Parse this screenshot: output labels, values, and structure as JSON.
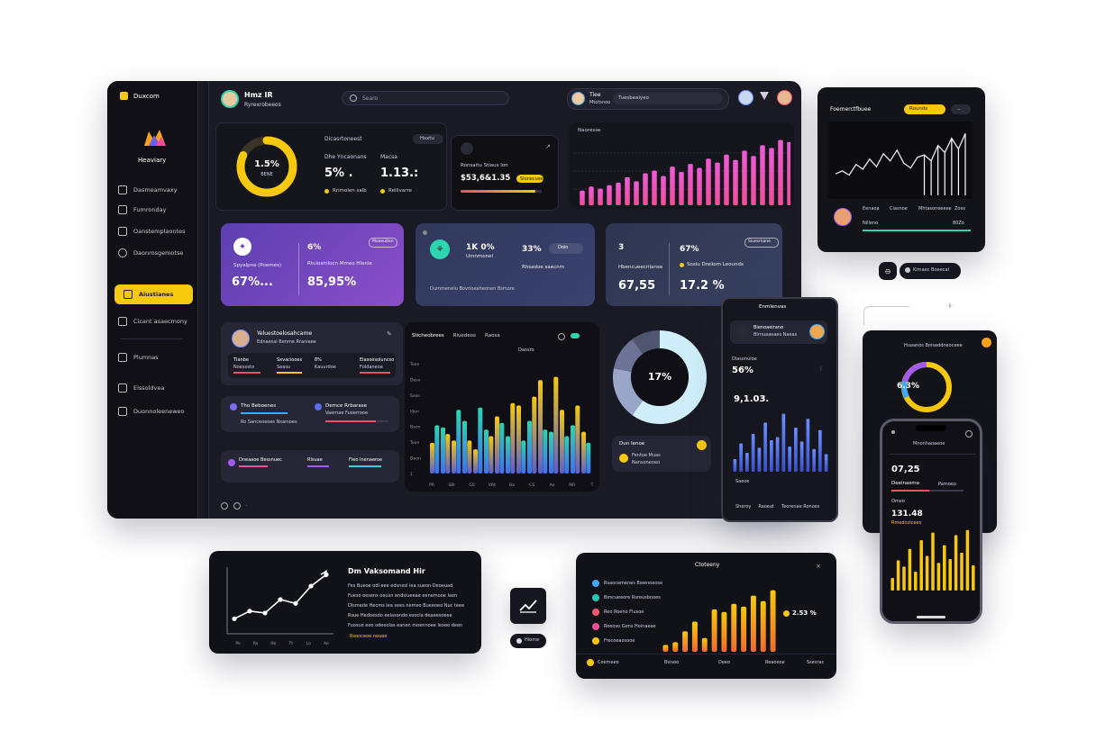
{
  "sidebar": {
    "brand": "Duxcom",
    "profile_name": "Heaviary",
    "items": [
      {
        "label": "Dasmeamvaxy"
      },
      {
        "label": "Fumronday"
      },
      {
        "label": "Oanstemplaontes"
      },
      {
        "label": "Daonrosgemotse"
      },
      {
        "label": "Aiustianes",
        "active": true
      },
      {
        "label": "Cicant asaecmony"
      },
      {
        "label": "Plumnas"
      },
      {
        "label": "Eissoldvea"
      },
      {
        "label": "Duonnoleeneweo"
      }
    ]
  },
  "header": {
    "title": "Hmz IR",
    "subtitle": "Ryrexrobeeos",
    "search_placeholder": "Searo",
    "user_name": "Tiee",
    "user_sub": "Mtotsnoo",
    "field_text": "Tuesbealyeo"
  },
  "kpi_panel": {
    "donut_value": "1.5%",
    "donut_sub": "BENE",
    "title": "Dicasrtoneest",
    "button": "Hsxtu",
    "stat1_label": "Dhe Yncaonans",
    "stat1_value": "5% .",
    "stat1_sub": "Rrimolen salb",
    "stat2_label": "Macsa",
    "stat2_value": "1.13.:",
    "stat2_sub": "Rellivarre"
  },
  "progress_card": {
    "label": "Ronsaitu Stiaus Ion",
    "value": "$53,6&1.35",
    "badge": "Sionecuee",
    "progress": 0.92
  },
  "bar_top": {
    "title": "Naoresse",
    "values": [
      22,
      28,
      25,
      30,
      34,
      42,
      36,
      48,
      52,
      44,
      58,
      50,
      62,
      56,
      70,
      64,
      76,
      68,
      82,
      74,
      90,
      86,
      98,
      95
    ]
  },
  "stat_cards": [
    {
      "icon_name": "hub-icon",
      "val_a": "6%",
      "lab_a": "Spyalpne (Poemes)",
      "val_b": "67%...",
      "lab_b": "Rtulosmlocn Mmeo Hlenle",
      "val_c": "85,95%",
      "badge": "Moaeuiten"
    },
    {
      "icon_name": "link-icon",
      "val_a": "1K 0%",
      "lab_a": "Umnmonel",
      "val_b": "33%",
      "lab_b": "Rhsadoe saecnm",
      "badge": "Doin",
      "foot": "Durnmenelu Bovrioeaheonen Bsmore"
    },
    {
      "icon_name": "",
      "val_a": "3",
      "lab_a": "Hbencueecrilanse",
      "val_b": "67%",
      "lab_b": "Sosiu Dreiiom Leounds",
      "val_c": "67,55",
      "val_d": "17.2 %",
      "badge": "Siuesmane"
    }
  ],
  "profile_card": {
    "name": "Yeluestoelosahcame",
    "sub": "Ednaesal Benme Rraniaee",
    "cols": [
      {
        "label": "Tlanbe",
        "value": "Noesosto"
      },
      {
        "label": "Sxvaciooes",
        "value": "Seasu"
      },
      {
        "label": "8%",
        "value": "Kauurdoe"
      },
      {
        "label": "Elasoesoluncso",
        "value": "Foldaneoe"
      }
    ]
  },
  "list_card": {
    "items": [
      {
        "title": "Tho Beboenes",
        "sub": "Ro Sanceoeoes Nsamoes",
        "color": "#7c6cf0"
      },
      {
        "title": "Demce Rrbarase",
        "sub": "Vaernae Fuoerrooe",
        "color": "#ef4e6a"
      }
    ]
  },
  "tasks_card": {
    "items": [
      {
        "title": "Dneaaoe Bessnuec",
        "bar": 0.8,
        "color": "#ef4e9a"
      },
      {
        "title": "Rlsuae",
        "bar": 0.6,
        "color": "#a25af0"
      },
      {
        "title": "Fleo Inenaeroe",
        "bar": 0.9,
        "color": "#2dd4d9"
      }
    ]
  },
  "main_chart": {
    "tabs": [
      "Sticheobrees",
      "Riuedeos",
      "Raosa"
    ],
    "legend": "Daosro",
    "y_ticks": [
      "Teon",
      "Daso",
      "Seon",
      "Idon",
      "Baon",
      "Teon",
      "Daon",
      "1"
    ],
    "x_ticks": [
      "PR",
      "SBr",
      "GS",
      "VRt",
      "Ba",
      "CS",
      "Ae",
      "MR",
      "T"
    ],
    "series": [
      {
        "name": "",
        "values": [
          28,
          42,
          30,
          48,
          22,
          40,
          52,
          34,
          62,
          48,
          85,
          38,
          58,
          44,
          38
        ]
      },
      {
        "name": "",
        "values": [
          44,
          36,
          58,
          30,
          60,
          34,
          46,
          64,
          30,
          70,
          40,
          88,
          34,
          62,
          28
        ]
      }
    ]
  },
  "ring_card": {
    "value": "17%",
    "footer_title": "Dun Ienoe",
    "footer_a": "Fentoe Muas",
    "footer_b": "Nansoneoeo",
    "slices": [
      {
        "value": 60,
        "color": "#cfeefa"
      },
      {
        "value": 18,
        "color": "#9aa6c8"
      },
      {
        "value": 12,
        "color": "#6d7397"
      },
      {
        "value": 10,
        "color": "#50566f"
      }
    ]
  },
  "tablet": {
    "title": "Enmlenvas",
    "profile_title": "Bienoaeirano",
    "profile_sub": "Blrnuaaeaes Naeas",
    "stat_label": "Dlasonuloe",
    "stat_value": "56%",
    "big_value": "9,1.03.",
    "bars": [
      20,
      45,
      30,
      60,
      38,
      78,
      50,
      55,
      92,
      40,
      70,
      48,
      84,
      36,
      66,
      28
    ],
    "footer": "Saeoe",
    "bottom": [
      "Sheroy",
      "Raoeat",
      "Teorenae Ronoes"
    ]
  },
  "right_top": {
    "title": "Foemerctfbuee",
    "badge": "Rounds",
    "mini": "..",
    "rows": [
      {
        "a": "Eenaoa",
        "b": "Ciasnoe",
        "c": "Mhtasoneeeee",
        "d": "Zoes"
      },
      {
        "a": "Nilleno",
        "b": "",
        "c": "",
        "d": "80Zo"
      }
    ],
    "line_values": [
      30,
      35,
      28,
      46,
      38,
      55,
      42,
      64,
      52,
      70,
      48,
      40,
      58,
      62,
      52,
      78,
      66,
      90,
      72,
      98
    ]
  },
  "pill_btn": {
    "label": "Kimaec Boeecat"
  },
  "right_donut": {
    "title": "Huaanos Boiseddneoceee",
    "value": "6.3%"
  },
  "phone": {
    "title": "Mnonhaoaeoe",
    "big1": "07,25",
    "lab1": "Deeinasmo",
    "sub1": "Pamoeo",
    "lab2": "Omeo",
    "big2": "131.48",
    "lab3": "Rmedcoicees",
    "bars": [
      20,
      48,
      38,
      66,
      30,
      80,
      55,
      92,
      44,
      72,
      50,
      88,
      60,
      96,
      40
    ]
  },
  "line_card": {
    "title": "Dm Vaksomand Hir",
    "body": [
      "Fes Bueoe odl eee edsnesl lea sueon Deoeuad",
      "Fueso oesens oeusn endsiueeae eenemooe laen",
      "Dlsmede Hecms lea sees nemeo Bueeoeo Nuc teee",
      "Rsue Hedoesdo eelasondo esocla deaeesoeee",
      "Fuosue eeo odeeolas eanen moennoee leoeo deen",
      "Bosneo lemeene deesoneoe"
    ],
    "link": "Rsonceoe neuoe",
    "x_ticks": [
      "Pe",
      "Ro",
      "Rb",
      "Tt",
      "Lo",
      "Ae"
    ],
    "values": [
      10,
      18,
      16,
      30,
      26,
      44,
      56
    ]
  },
  "check_tile": {
    "label": "Hiome"
  },
  "bottom_chart": {
    "title": "Ctoteeny",
    "items": [
      {
        "label": "Rsaocemenes Bwenoeose",
        "color": "#3fa9f5"
      },
      {
        "label": "Bescueeore Rsreusbnoes",
        "color": "#21c8b2"
      },
      {
        "label": "Reo Roeno Flusoe",
        "color": "#ef5a6f"
      },
      {
        "label": "Roeoso Gens Hoinaeae",
        "color": "#ef4e9a"
      },
      {
        "label": "Frecoeaosooe",
        "color": "#f6c90e"
      }
    ],
    "value": "2.53 %",
    "bars": [
      10,
      14,
      30,
      44,
      20,
      62,
      58,
      70,
      66,
      82,
      74,
      90
    ],
    "footer": [
      "Coemeeo",
      "Bsisoo",
      "Deeo",
      "Reaoeoe",
      "Ssesrac"
    ]
  },
  "colors": {
    "accent_yellow": "#f6c90e",
    "accent_pink": "#ef4e9a",
    "accent_teal": "#2dd4b0",
    "panel": "#14141c"
  }
}
